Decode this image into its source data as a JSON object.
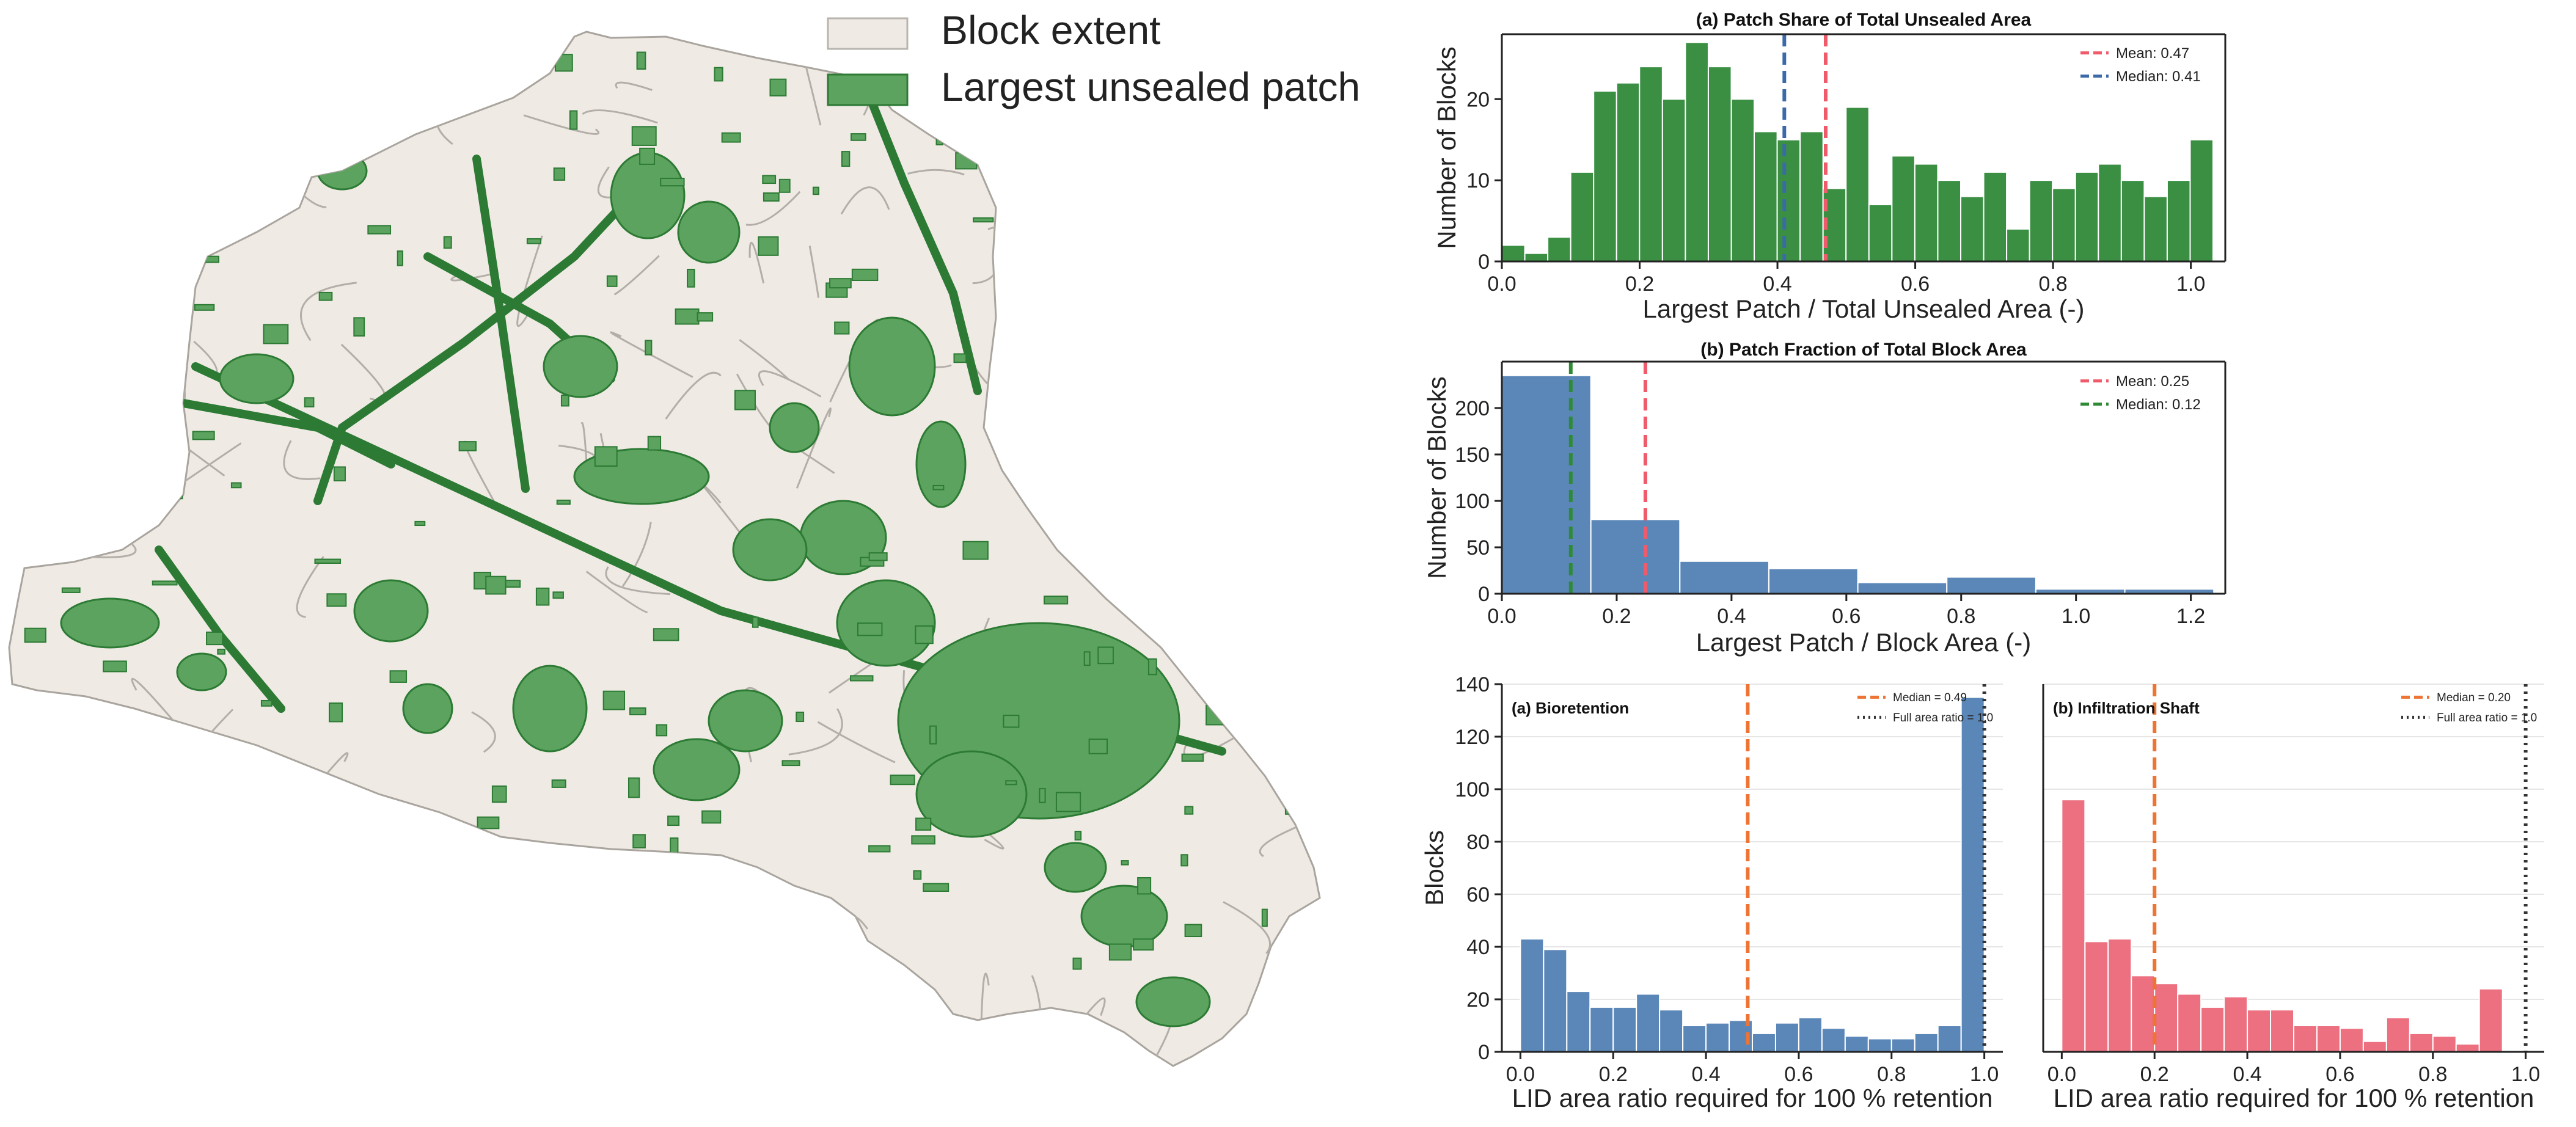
{
  "map_legend": {
    "items": [
      {
        "label": "Block extent",
        "fill": "#efebe4",
        "stroke": "#b8b4ae"
      },
      {
        "label": "Largest unsealed patch",
        "fill": "#5ba35e",
        "stroke": "#2f7a35"
      }
    ]
  },
  "colors": {
    "block": "#efebe4",
    "block_line": "#b3afa8",
    "patch": "#5ba35e",
    "patch_line": "#2c7a34",
    "green_bar": "#3a8f43",
    "blue_bar": "#5b87b8",
    "pink_bar": "#ec7080",
    "mean_red": "#ef5b6a",
    "median_blue": "#3c6aa8",
    "median_green": "#2f8a36",
    "median_orange": "#ee7433",
    "full_black": "#333333"
  },
  "chart_data": [
    {
      "id": "a",
      "type": "bar",
      "title": "(a) Patch Share of Total Unsealed Area",
      "xlabel": "Largest Patch / Total Unsealed Area (-)",
      "ylabel": "Number of Blocks",
      "xlim": [
        0,
        1.05
      ],
      "ylim": [
        0,
        28
      ],
      "xticks": [
        "0.0",
        "0.2",
        "0.4",
        "0.6",
        "0.8",
        "1.0"
      ],
      "yticks": [
        "0",
        "10",
        "20"
      ],
      "bin_start": 0.0,
      "bin_width": 0.0333,
      "values": [
        2,
        1,
        3,
        11,
        21,
        22,
        24,
        20,
        27,
        24,
        20,
        16,
        15,
        16,
        9,
        19,
        7,
        13,
        12,
        10,
        8,
        11,
        4,
        10,
        9,
        11,
        12,
        10,
        8,
        10,
        15
      ],
      "legend": [
        {
          "label": "Mean: 0.47",
          "value": 0.47,
          "style": "dashed",
          "color": "#ef5b6a"
        },
        {
          "label": "Median: 0.41",
          "value": 0.41,
          "style": "dashed",
          "color": "#3c6aa8"
        }
      ],
      "legend_position": "top-right"
    },
    {
      "id": "b",
      "type": "bar",
      "title": "(b) Patch Fraction of Total Block Area",
      "xlabel": "Largest Patch / Block Area (-)",
      "ylabel": "Number of Blocks",
      "xlim": [
        0,
        1.26
      ],
      "ylim": [
        0,
        250
      ],
      "xticks": [
        "0.0",
        "0.2",
        "0.4",
        "0.6",
        "0.8",
        "1.0",
        "1.2"
      ],
      "yticks": [
        "0",
        "50",
        "100",
        "150",
        "200"
      ],
      "bin_start": 0.0,
      "bin_width": 0.155,
      "values": [
        235,
        80,
        35,
        27,
        12,
        18,
        5,
        5
      ],
      "legend": [
        {
          "label": "Mean: 0.25",
          "value": 0.25,
          "style": "dashed",
          "color": "#ef5b6a"
        },
        {
          "label": "Median: 0.12",
          "value": 0.12,
          "style": "dashed",
          "color": "#2f8a36"
        }
      ],
      "legend_position": "top-right"
    },
    {
      "id": "c",
      "type": "bar",
      "title": "(a) Bioretention",
      "xlabel": "LID area ratio required for 100 % retention",
      "ylabel": "Blocks",
      "xlim": [
        -0.04,
        1.04
      ],
      "ylim": [
        0,
        140
      ],
      "xticks": [
        "0.0",
        "0.2",
        "0.4",
        "0.6",
        "0.8",
        "1.0"
      ],
      "yticks": [
        "0",
        "20",
        "40",
        "60",
        "80",
        "100",
        "120",
        "140"
      ],
      "bin_start": 0.0,
      "bin_width": 0.05,
      "values": [
        43,
        39,
        23,
        17,
        17,
        22,
        16,
        10,
        11,
        12,
        7,
        11,
        13,
        9,
        6,
        5,
        5,
        7,
        10,
        135
      ],
      "legend": [
        {
          "label": "Median = 0.49",
          "value": 0.49,
          "style": "dashed",
          "color": "#ee7433"
        },
        {
          "label": "Full area ratio = 1.0",
          "value": 1.0,
          "style": "dotted",
          "color": "#333333"
        }
      ],
      "legend_position": "top-right"
    },
    {
      "id": "d",
      "type": "bar",
      "title": "(b) Infiltration Shaft",
      "xlabel": "LID area ratio required for 100 % retention",
      "ylabel": "",
      "xlim": [
        -0.04,
        1.04
      ],
      "ylim": [
        0,
        140
      ],
      "xticks": [
        "0.0",
        "0.2",
        "0.4",
        "0.6",
        "0.8",
        "1.0"
      ],
      "yticks": [],
      "bin_start": 0.0,
      "bin_width": 0.05,
      "values": [
        96,
        42,
        43,
        29,
        26,
        22,
        17,
        21,
        16,
        16,
        10,
        10,
        9,
        4,
        13,
        7,
        6,
        3,
        24
      ],
      "legend": [
        {
          "label": "Median = 0.20",
          "value": 0.2,
          "style": "dashed",
          "color": "#ee7433"
        },
        {
          "label": "Full area ratio = 1.0",
          "value": 1.0,
          "style": "dotted",
          "color": "#333333"
        }
      ],
      "legend_position": "top-right"
    }
  ]
}
